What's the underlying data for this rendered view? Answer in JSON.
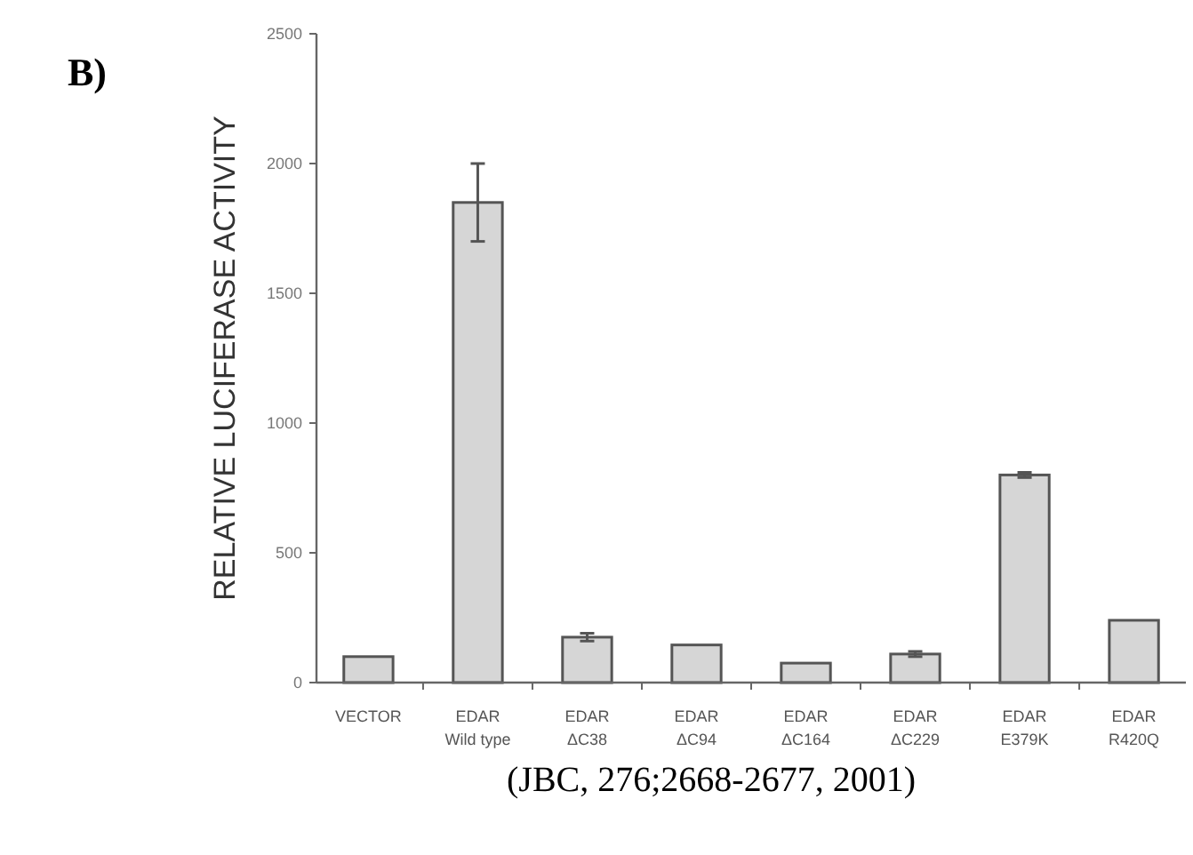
{
  "chart_data": {
    "type": "bar",
    "ylabel": "RELATIVE LUCIFERASE ACTIVITY",
    "categories": [
      "VECTOR",
      "EDAR\nWild type",
      "EDAR\nΔC38",
      "EDAR\nΔC94",
      "EDAR\nΔC164",
      "EDAR\nΔC229",
      "EDAR\nE379K",
      "EDAR\nR420Q"
    ],
    "values": [
      100,
      1850,
      175,
      145,
      75,
      110,
      800,
      240
    ],
    "errors": [
      null,
      150,
      15,
      null,
      null,
      10,
      10,
      null
    ],
    "color": "#d6d6d6",
    "ylim": [
      0,
      2500
    ],
    "yticks": [
      0,
      500,
      1000,
      1500,
      2000,
      2500
    ],
    "grid": false,
    "annotations": [
      "B)",
      "(JBC, 276;2668-2677, 2001)"
    ]
  }
}
